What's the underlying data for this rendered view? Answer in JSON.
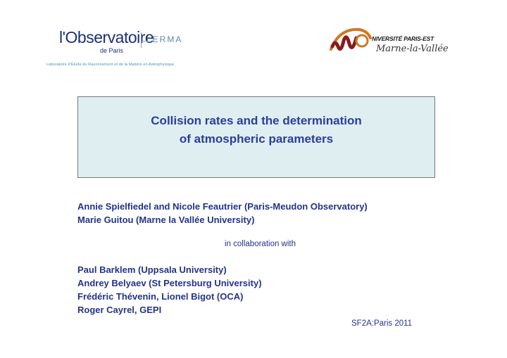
{
  "logos": {
    "observatoire": {
      "name_prefix": "l'",
      "name_big": "Observatoire",
      "name_sub": "de Paris",
      "partner": "LERMA",
      "lab_line": "Laboratoire d'Étude du Rayonnement et de la Matière en Astrophysique"
    },
    "university": {
      "line1": "NIVERSITÉ PARIS-EST",
      "line2": "Marne-la-Vallée",
      "colors": {
        "arc": "#d07820",
        "mark": "#8b1a1a"
      }
    }
  },
  "title": {
    "line1": "Collision rates and the determination",
    "line2": "of atmospheric parameters"
  },
  "authors_primary": [
    "Annie Spielfiedel and Nicole Feautrier (Paris-Meudon Observatory)",
    "Marie Guitou (Marne la Vallée University)"
  ],
  "collaboration_text": "in collaboration with",
  "collaborators": [
    "Paul Barklem (Uppsala University)",
    "Andrey Belyaev (St Petersburg University)",
    "Frédéric Thévenin, Lionel Bigot (OCA)",
    "Roger Cayrel, GEPI"
  ],
  "venue": "SF2A:Paris 2011",
  "colors": {
    "title": "#2b3d9c",
    "text": "#23338c",
    "box_bg": "#dfeef1"
  }
}
